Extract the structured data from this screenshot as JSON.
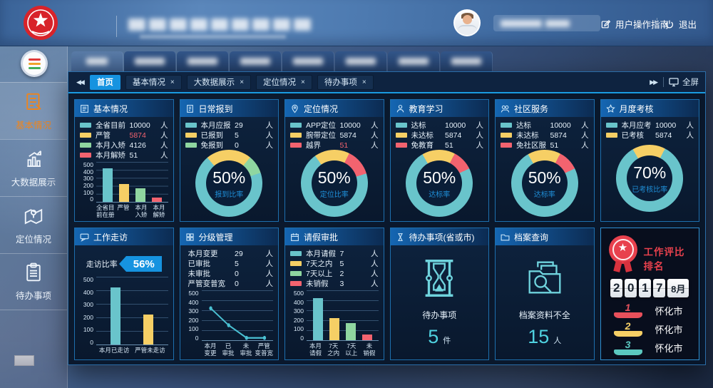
{
  "topbar": {
    "user_guide": "用户操作指南",
    "logout": "退出"
  },
  "sidebar": {
    "items": [
      {
        "label": "基本情况",
        "icon": "document-edit-icon",
        "active": true
      },
      {
        "label": "大数据展示",
        "icon": "bar-chart-icon",
        "active": false
      },
      {
        "label": "定位情况",
        "icon": "map-location-icon",
        "active": false
      },
      {
        "label": "待办事项",
        "icon": "clipboard-icon",
        "active": false
      }
    ]
  },
  "tabbar": {
    "tabs": [
      {
        "label": "首页",
        "active": true,
        "closable": false
      },
      {
        "label": "基本情况",
        "active": false,
        "closable": true
      },
      {
        "label": "大数据展示",
        "active": false,
        "closable": true
      },
      {
        "label": "定位情况",
        "active": false,
        "closable": true
      },
      {
        "label": "待办事项",
        "active": false,
        "closable": true
      }
    ],
    "fullscreen": "全屏"
  },
  "colors": {
    "teal": "#69c4cb",
    "yellow": "#f6cf65",
    "green": "#8fd6a0",
    "red": "#f2636f",
    "accent_blue": "#1693e0",
    "caption_blue": "#1f8fd8",
    "rank_red": "#e8505b",
    "rank_yellow": "#f6cf65",
    "rank_teal": "#5bc8c0"
  },
  "cards": [
    {
      "title": "基本情况",
      "icon": "form-icon",
      "legend": [
        {
          "color": "#69c4cb",
          "label": "全省目前在册",
          "value": "10000",
          "unit": "人"
        },
        {
          "color": "#f6cf65",
          "label": "严管",
          "value": "5874",
          "unit": "人",
          "value_color": "#f2636f"
        },
        {
          "color": "#8fd6a0",
          "label": "本月入矫",
          "value": "4126",
          "unit": "人"
        },
        {
          "color": "#f2636f",
          "label": "本月解矫",
          "value": "51",
          "unit": "人"
        }
      ],
      "chart": {
        "type": "bar",
        "ymax": 500,
        "yticks": [
          500,
          400,
          300,
          200,
          100,
          0
        ],
        "categories": [
          "全省目|前在册",
          "严管",
          "本月|入矫",
          "本月|解矫"
        ],
        "values": [
          420,
          220,
          170,
          55
        ],
        "colors": [
          "#69c4cb",
          "#f6cf65",
          "#8fd6a0",
          "#f2636f"
        ]
      }
    },
    {
      "title": "日常报到",
      "icon": "checkin-icon",
      "legend": [
        {
          "color": "#69c4cb",
          "label": "本月应报到",
          "value": "29",
          "unit": "人"
        },
        {
          "color": "#f6cf65",
          "label": "已报到",
          "value": "5",
          "unit": "人"
        },
        {
          "color": "#8fd6a0",
          "label": "免报到",
          "value": "0",
          "unit": "人"
        }
      ],
      "chart": {
        "type": "donut",
        "percent": "50%",
        "caption": "报到比率",
        "start": -40,
        "segments": [
          {
            "color": "#f6cf65",
            "pct": 22
          },
          {
            "color": "#8fd6a0",
            "pct": 9
          },
          {
            "color": "#69c4cb",
            "pct": 69
          }
        ]
      }
    },
    {
      "title": "定位情况",
      "icon": "location-pin-icon",
      "legend": [
        {
          "color": "#69c4cb",
          "label": "APP定位",
          "value": "10000",
          "unit": "人"
        },
        {
          "color": "#f6cf65",
          "label": "腕带定位",
          "value": "5874",
          "unit": "人"
        },
        {
          "color": "#f2636f",
          "label": "越界",
          "value": "51",
          "unit": "人",
          "value_color": "#f2636f"
        }
      ],
      "chart": {
        "type": "donut",
        "percent": "50%",
        "caption": "定位比率",
        "start": -35,
        "segments": [
          {
            "color": "#f6cf65",
            "pct": 17
          },
          {
            "color": "#f2636f",
            "pct": 13
          },
          {
            "color": "#69c4cb",
            "pct": 70
          }
        ]
      }
    },
    {
      "title": "教育学习",
      "icon": "education-icon",
      "legend": [
        {
          "color": "#69c4cb",
          "label": "达标",
          "value": "10000",
          "unit": "人"
        },
        {
          "color": "#f6cf65",
          "label": "未达标",
          "value": "5874",
          "unit": "人"
        },
        {
          "color": "#f2636f",
          "label": "免教育",
          "value": "51",
          "unit": "人"
        }
      ],
      "chart": {
        "type": "donut",
        "percent": "50%",
        "caption": "达标率",
        "start": -30,
        "segments": [
          {
            "color": "#f6cf65",
            "pct": 16
          },
          {
            "color": "#f2636f",
            "pct": 10
          },
          {
            "color": "#69c4cb",
            "pct": 74
          }
        ]
      }
    },
    {
      "title": "社区服务",
      "icon": "community-icon",
      "legend": [
        {
          "color": "#69c4cb",
          "label": "达标",
          "value": "10000",
          "unit": "人"
        },
        {
          "color": "#f6cf65",
          "label": "未达标",
          "value": "5874",
          "unit": "人"
        },
        {
          "color": "#f2636f",
          "label": "免社区服务",
          "value": "51",
          "unit": "人"
        }
      ],
      "chart": {
        "type": "donut",
        "percent": "50%",
        "caption": "达标率",
        "start": -30,
        "segments": [
          {
            "color": "#f6cf65",
            "pct": 16
          },
          {
            "color": "#f2636f",
            "pct": 10
          },
          {
            "color": "#69c4cb",
            "pct": 74
          }
        ]
      }
    },
    {
      "title": "月度考核",
      "icon": "star-icon",
      "legend": [
        {
          "color": "#69c4cb",
          "label": "本月应考核",
          "value": "10000",
          "unit": "人"
        },
        {
          "color": "#f6cf65",
          "label": "已考核",
          "value": "5874",
          "unit": "人"
        }
      ],
      "chart": {
        "type": "donut",
        "percent": "70%",
        "caption": "已考核比率",
        "start": -30,
        "segments": [
          {
            "color": "#f6cf65",
            "pct": 16
          },
          {
            "color": "#69c4cb",
            "pct": 84
          }
        ]
      }
    },
    {
      "title": "工作走访",
      "icon": "visit-icon",
      "badge": {
        "label": "走访比率",
        "value": "56%"
      },
      "chart": {
        "type": "bar",
        "ymax": 500,
        "yticks": [
          500,
          400,
          300,
          200,
          100,
          0
        ],
        "categories": [
          "本月已走访",
          "严管未走访"
        ],
        "values": [
          420,
          220
        ],
        "colors": [
          "#69c4cb",
          "#f6cf65"
        ]
      }
    },
    {
      "title": "分级管理",
      "icon": "tier-icon",
      "list": [
        {
          "label": "本月变更",
          "value": "29",
          "unit": "人"
        },
        {
          "label": "已审批",
          "value": "5",
          "unit": "人"
        },
        {
          "label": "未审批",
          "value": "0",
          "unit": "人"
        },
        {
          "label": "严管变普宽",
          "value": "0",
          "unit": "人"
        }
      ],
      "chart": {
        "type": "line",
        "ymax": 500,
        "yticks": [
          500,
          400,
          300,
          200,
          100,
          0
        ],
        "categories": [
          "本月|变更",
          "已|审批",
          "未|审批",
          "严管|变普宽"
        ],
        "values": [
          320,
          150,
          10,
          10
        ],
        "line_color": "#4ac0d2"
      }
    },
    {
      "title": "请假审批",
      "icon": "calendar-icon",
      "legend": [
        {
          "color": "#69c4cb",
          "label": "本月请假",
          "value": "7",
          "unit": "人"
        },
        {
          "color": "#f6cf65",
          "label": "7天之内",
          "value": "5",
          "unit": "人"
        },
        {
          "color": "#8fd6a0",
          "label": "7天以上",
          "value": "2",
          "unit": "人"
        },
        {
          "color": "#f2636f",
          "label": "未销假",
          "value": "3",
          "unit": "人"
        }
      ],
      "chart": {
        "type": "bar",
        "ymax": 500,
        "yticks": [
          500,
          400,
          300,
          200,
          100,
          0
        ],
        "categories": [
          "本月|请假",
          "7天|之内",
          "7天|以上",
          "未|销假"
        ],
        "values": [
          420,
          220,
          170,
          55
        ],
        "colors": [
          "#69c4cb",
          "#f6cf65",
          "#8fd6a0",
          "#f2636f"
        ]
      }
    },
    {
      "title": "待办事项(省或市)",
      "icon": "todo-icon",
      "stat": {
        "icon": "hourglass-icon",
        "label": "待办事项",
        "value": "5",
        "unit": "件"
      }
    },
    {
      "title": "档案查询",
      "icon": "folder-icon",
      "stat": {
        "icon": "archive-search-icon",
        "label": "档案资料不全",
        "value": "15",
        "unit": "人"
      }
    },
    {
      "ranking": {
        "title": "工作评比排名",
        "year_digits": [
          "2",
          "0",
          "1",
          "7"
        ],
        "month": "8月",
        "ranks": [
          {
            "no": "1",
            "color": "#e8505b",
            "name": "怀化市"
          },
          {
            "no": "2",
            "color": "#f6cf65",
            "name": "怀化市"
          },
          {
            "no": "3",
            "color": "#5bc8c0",
            "name": "怀化市"
          }
        ]
      }
    }
  ]
}
